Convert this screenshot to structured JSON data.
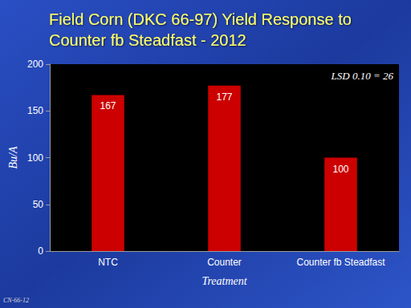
{
  "chart_data": {
    "type": "bar",
    "title": "Field Corn (DKC 66-97) Yield Response to Counter fb Steadfast - 2012",
    "xlabel": "Treatment",
    "ylabel": "Bu/A",
    "categories": [
      "NTC",
      "Counter",
      "Counter fb Steadfast"
    ],
    "values": [
      167,
      177,
      100
    ],
    "color": "#cc0000",
    "ylim": [
      0,
      200
    ],
    "yticks": [
      0,
      50,
      100,
      150,
      200
    ],
    "grid": false,
    "data_labels": true,
    "annotations": [
      "LSD 0.10 = 26",
      "CN-66-12"
    ]
  }
}
